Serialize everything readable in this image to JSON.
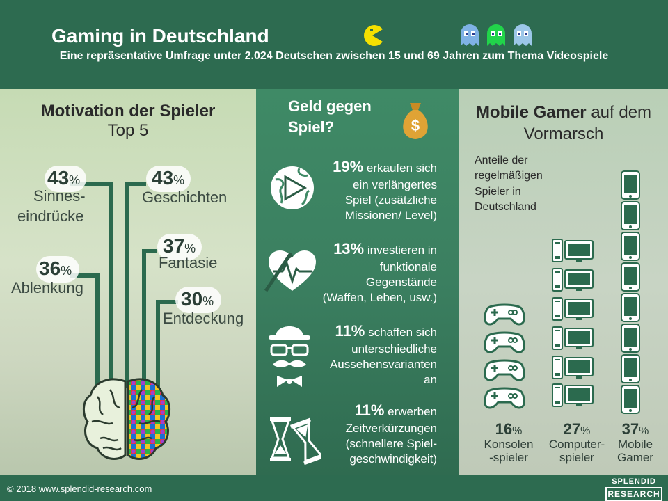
{
  "header": {
    "title": "Gaming in Deutschland",
    "subtitle": "Eine repräsentative Umfrage unter 2.024 Deutschen zwischen 15 und 69 Jahren zum Thema Videospiele"
  },
  "motivation": {
    "title_bold": "Motivation der Spieler",
    "title_sub": "Top 5",
    "items": [
      {
        "num": "43",
        "pct": "%",
        "label": "Sinnes-"
      },
      {
        "num": "",
        "pct": "",
        "label": "eindrücke"
      },
      {
        "num": "43",
        "pct": "%",
        "label": "Geschichten"
      },
      {
        "num": "37",
        "pct": "%",
        "label": "Fantasie"
      },
      {
        "num": "36",
        "pct": "%",
        "label": "Ablenkung"
      },
      {
        "num": "30",
        "pct": "%",
        "label": "Entdeckung"
      }
    ]
  },
  "money": {
    "title_line1": "Geld gegen",
    "title_line2": "Spiel?",
    "rows": [
      {
        "num": "19%",
        "l1": " erkaufen sich",
        "l2": "ein verlängertes",
        "l3": "Spiel (zusätzliche",
        "l4": "Missionen/ Level)"
      },
      {
        "num": "13%",
        "l1": " investieren in",
        "l2": "funktionale",
        "l3": "Gegenstände",
        "l4": "(Waffen, Leben, usw.)"
      },
      {
        "num": "11%",
        "l1": " schaffen sich",
        "l2": "unterschiedliche",
        "l3": "Aussehensvarianten",
        "l4": "an"
      },
      {
        "num": "11%",
        "l1": " erwerben",
        "l2": "Zeitverkürzungen",
        "l3": "(schnellere Spiel-",
        "l4": "geschwindigkeit)"
      }
    ]
  },
  "mobile": {
    "title_bold": "Mobile Gamer",
    "title_rest": " auf dem",
    "title_line2": "Vormarsch",
    "sub": "Anteile der regelmäßigen Spieler in Deutschland",
    "stats": [
      {
        "num": "16",
        "pct": "%",
        "l1": "Konsolen",
        "l2": "-spieler"
      },
      {
        "num": "27",
        "pct": "%",
        "l1": "Computer-",
        "l2": "spieler"
      },
      {
        "num": "37",
        "pct": "%",
        "l1": "Mobile",
        "l2": "Gamer"
      }
    ]
  },
  "footer": {
    "copyright": "© 2018 www.splendid-research.com",
    "logo_top": "SPLENDID",
    "logo_bottom": "RESEARCH"
  },
  "colors": {
    "primary": "#2d6b50",
    "accent": "#3f8a66",
    "pacman": "#f5e000"
  }
}
